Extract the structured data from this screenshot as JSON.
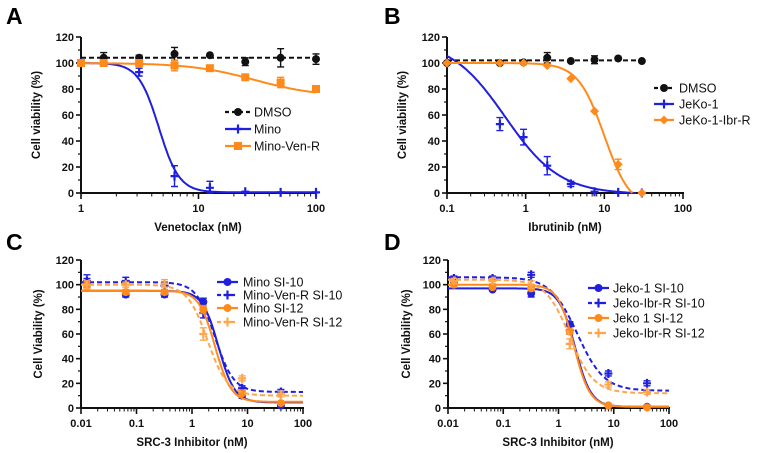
{
  "chart_data": [
    {
      "panel": "A",
      "type": "line",
      "xscale": "log",
      "xlim": [
        1,
        100
      ],
      "ylim": [
        0,
        120
      ],
      "xticks": [
        "1",
        "10",
        "100"
      ],
      "yticks": [
        "0",
        "20",
        "40",
        "60",
        "80",
        "100",
        "120"
      ],
      "xlabel": "Venetoclax (nM)",
      "ylabel": "Cell viability (%)",
      "legend_placement": "center-right",
      "series": [
        {
          "name": "DMSO",
          "color": "#111111",
          "marker": "circle",
          "dash": true,
          "x": [
            1,
            1.56,
            3.125,
            6.25,
            12.5,
            25,
            50,
            100
          ],
          "y": [
            100,
            104,
            104,
            107,
            106,
            101,
            104,
            103
          ],
          "err": [
            1,
            4,
            2,
            5,
            1,
            3,
            7,
            4
          ],
          "fit": {
            "type": "flat",
            "value": 104
          }
        },
        {
          "name": "Mino",
          "color": "#1f1fe0",
          "marker": "plus",
          "dash": false,
          "x": [
            1,
            3.125,
            6.25,
            12.5,
            25,
            50,
            100
          ],
          "y": [
            100,
            93,
            13,
            4,
            1,
            0.5,
            0.5
          ],
          "err": [
            1,
            3,
            8,
            5,
            1,
            1,
            1
          ],
          "fit": {
            "top": 100,
            "bottom": 0.5,
            "ic50": 4.6,
            "hill": 5
          }
        },
        {
          "name": "Mino-Ven-R",
          "color": "#ff8a1c",
          "marker": "square",
          "dash": false,
          "x": [
            1,
            1.56,
            3.125,
            6.25,
            12.5,
            25,
            50,
            100
          ],
          "y": [
            100,
            100,
            100,
            98,
            96,
            89,
            85,
            80
          ],
          "err": [
            1,
            1,
            1,
            4,
            2,
            2,
            4,
            2
          ],
          "fit": {
            "top": 100,
            "bottom": 74,
            "ic50": 30,
            "hill": 1.6
          }
        }
      ]
    },
    {
      "panel": "B",
      "type": "line",
      "xscale": "log",
      "xlim": [
        0.1,
        100
      ],
      "ylim": [
        0,
        120
      ],
      "xticks": [
        "0.1",
        "1",
        "10",
        "100"
      ],
      "yticks": [
        "0",
        "20",
        "40",
        "60",
        "80",
        "100",
        "120"
      ],
      "xlabel": "Ibrutinib (nM)",
      "ylabel": "Cell viability (%)",
      "legend_placement": "right",
      "series": [
        {
          "name": "DMSO",
          "color": "#111111",
          "marker": "circle",
          "dash": true,
          "x": [
            0.1,
            0.47,
            0.94,
            1.88,
            3.75,
            7.5,
            15,
            30
          ],
          "y": [
            100,
            100,
            100.5,
            104,
            101.5,
            102.5,
            103.5,
            101.5
          ],
          "err": [
            0.5,
            1,
            1,
            4,
            1,
            3,
            1,
            1
          ],
          "fit": {
            "type": "flat",
            "value": 102
          }
        },
        {
          "name": "JeKo-1",
          "color": "#1f1fe0",
          "marker": "plus",
          "dash": false,
          "x": [
            0.1,
            0.47,
            0.94,
            1.88,
            3.75,
            7.5,
            15,
            30
          ],
          "y": [
            100,
            53,
            43,
            21,
            7,
            1,
            0.5,
            0
          ],
          "err": [
            1,
            5,
            6,
            7,
            2,
            1,
            1,
            0
          ],
          "fit": {
            "top": 118,
            "bottom": -1,
            "ic50": 0.55,
            "hill": 1.25
          }
        },
        {
          "name": "JeKo-1-Ibr-R",
          "color": "#ff8a1c",
          "marker": "diamond",
          "dash": false,
          "x": [
            0.1,
            0.47,
            0.94,
            1.88,
            3.75,
            7.5,
            15,
            30
          ],
          "y": [
            100,
            100,
            100,
            98,
            88,
            63,
            22,
            0
          ],
          "err": [
            0.5,
            1,
            1,
            1,
            1,
            1,
            4,
            0
          ],
          "fit": {
            "top": 100,
            "bottom": -12,
            "ic50": 10,
            "hill": 2.6
          }
        }
      ]
    },
    {
      "panel": "C",
      "type": "line",
      "xscale": "log",
      "xlim": [
        0.01,
        100
      ],
      "ylim": [
        0,
        120
      ],
      "xticks": [
        "0.01",
        "0.1",
        "1",
        "10",
        "100"
      ],
      "yticks": [
        "0",
        "20",
        "40",
        "60",
        "80",
        "100",
        "120"
      ],
      "xlabel": "SRC-3 Inhibitor (nM)",
      "ylabel": "Cell Viability (%)",
      "legend_placement": "top-right",
      "series": [
        {
          "name": "Mino SI-10",
          "color": "#1f1fe0",
          "marker": "circle",
          "dash": false,
          "x": [
            0.0128,
            0.064,
            0.32,
            1.6,
            8,
            40
          ],
          "y": [
            101,
            92,
            92,
            86,
            10,
            2
          ],
          "err": [
            4,
            2,
            2,
            3,
            2,
            1
          ],
          "fit": {
            "top": 95,
            "bottom": 4.5,
            "ic50": 3.0,
            "hill": 3
          }
        },
        {
          "name": "Mino-Ven-R SI-10",
          "color": "#1f1fe0",
          "marker": "plus",
          "dash": true,
          "x": [
            0.0128,
            0.064,
            0.32,
            1.6,
            8,
            40
          ],
          "y": [
            103,
            103,
            99,
            77,
            16,
            13
          ],
          "err": [
            5,
            3,
            3,
            4,
            2,
            2
          ],
          "fit": {
            "top": 102,
            "bottom": 13,
            "ic50": 2.6,
            "hill": 2.6
          }
        },
        {
          "name": "Mino SI-12",
          "color": "#ff8a1c",
          "marker": "circle",
          "dash": false,
          "x": [
            0.0128,
            0.064,
            0.32,
            1.6,
            8,
            40
          ],
          "y": [
            100,
            94,
            94,
            80,
            12,
            4
          ],
          "err": [
            3,
            2,
            2,
            3,
            2,
            1
          ],
          "fit": {
            "top": 95,
            "bottom": 5,
            "ic50": 2.6,
            "hill": 3
          }
        },
        {
          "name": "Mino-Ven-R SI-12",
          "color": "#ffa64d",
          "marker": "plus",
          "dash": true,
          "x": [
            0.0128,
            0.064,
            0.32,
            1.6,
            8,
            40
          ],
          "y": [
            100,
            100,
            101,
            60,
            24,
            11
          ],
          "err": [
            3,
            2,
            3,
            5,
            2,
            2
          ],
          "fit": {
            "top": 100,
            "bottom": 10,
            "ic50": 1.9,
            "hill": 2.4
          }
        }
      ]
    },
    {
      "panel": "D",
      "type": "line",
      "xscale": "log",
      "xlim": [
        0.01,
        100
      ],
      "ylim": [
        0,
        120
      ],
      "xticks": [
        "0.01",
        "0.1",
        "1",
        "10",
        "100"
      ],
      "yticks": [
        "0",
        "20",
        "40",
        "60",
        "80",
        "100",
        "120"
      ],
      "xlabel": "SRC-3 Inhibitor (nM)",
      "ylabel": "Cell Viability (%)",
      "legend_placement": "top-right",
      "series": [
        {
          "name": "Jeko-1 SI-10",
          "color": "#1f1fe0",
          "marker": "circle",
          "dash": false,
          "x": [
            0.0128,
            0.064,
            0.32,
            1.6,
            8,
            40
          ],
          "y": [
            102,
            96,
            93,
            68,
            2,
            1
          ],
          "err": [
            2,
            1,
            3,
            2,
            1,
            1
          ],
          "fit": {
            "top": 97,
            "bottom": 1,
            "ic50": 2.0,
            "hill": 3
          }
        },
        {
          "name": "Jeko-Ibr-R SI-10",
          "color": "#1f1fe0",
          "marker": "plus",
          "dash": true,
          "x": [
            0.0128,
            0.064,
            0.32,
            1.6,
            8,
            40
          ],
          "y": [
            105,
            105,
            108,
            63,
            28,
            20
          ],
          "err": [
            2,
            2,
            2,
            3,
            2,
            2
          ],
          "fit": {
            "top": 106,
            "bottom": 14,
            "ic50": 2.2,
            "hill": 1.8
          }
        },
        {
          "name": "Jeko 1 SI-12",
          "color": "#ff8a1c",
          "marker": "circle",
          "dash": false,
          "x": [
            0.0128,
            0.064,
            0.32,
            1.6,
            8,
            40
          ],
          "y": [
            100,
            98,
            97,
            62,
            2,
            0.5
          ],
          "err": [
            2,
            1,
            2,
            2,
            1,
            1
          ],
          "fit": {
            "top": 100,
            "bottom": 1,
            "ic50": 1.9,
            "hill": 3
          }
        },
        {
          "name": "Jeko-Ibr-R SI-12",
          "color": "#ffa64d",
          "marker": "plus",
          "dash": true,
          "x": [
            0.0128,
            0.064,
            0.32,
            1.6,
            8,
            40
          ],
          "y": [
            103,
            103,
            100,
            52,
            19,
            13
          ],
          "err": [
            2,
            2,
            3,
            4,
            2,
            2
          ],
          "fit": {
            "top": 104,
            "bottom": 12,
            "ic50": 1.6,
            "hill": 2
          }
        }
      ]
    }
  ]
}
